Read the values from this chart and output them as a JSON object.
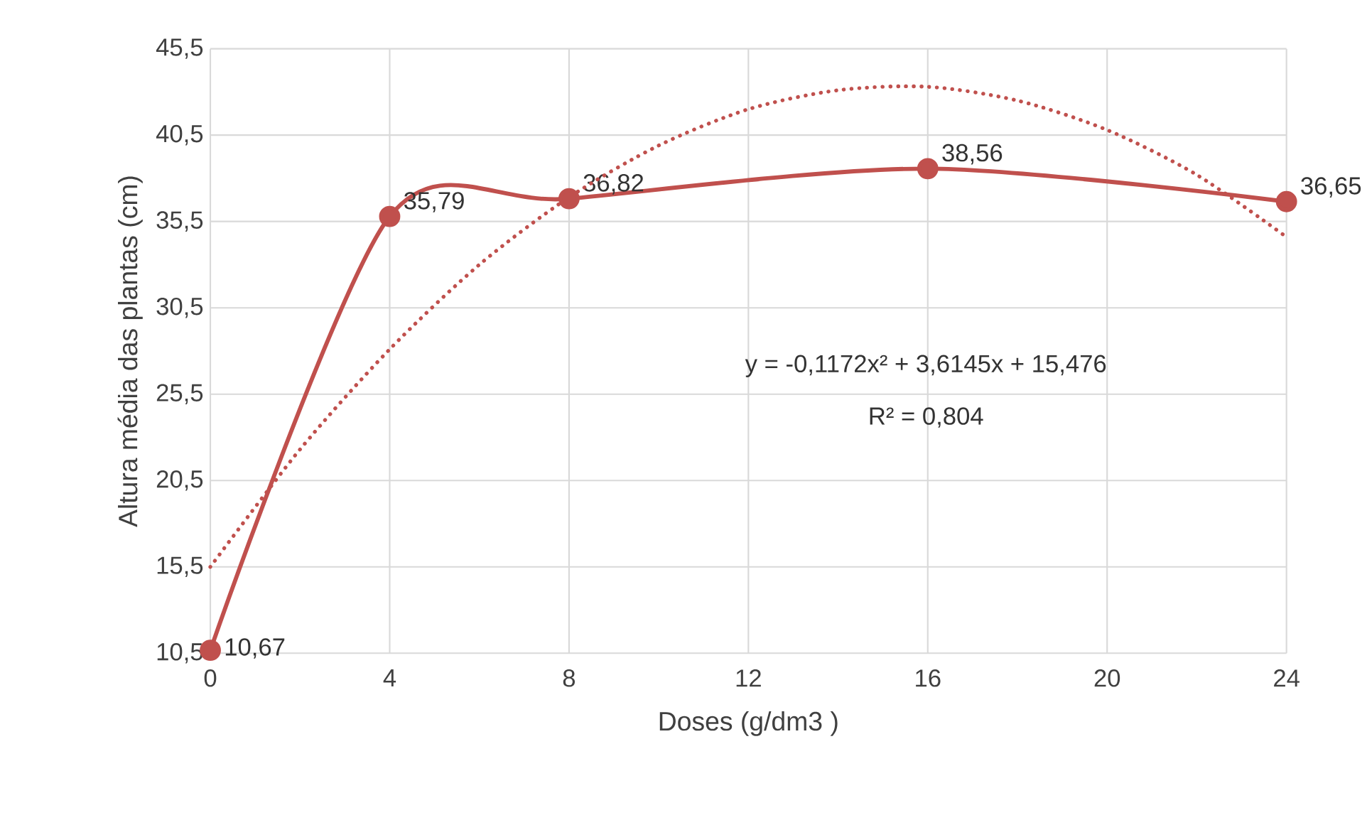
{
  "chart_data": {
    "type": "line",
    "xlabel": "Doses (g/dm3 )",
    "ylabel": "Altura média das plantas (cm)",
    "xlim": [
      0,
      24
    ],
    "xticks": [
      0,
      4,
      8,
      12,
      16,
      20,
      24
    ],
    "ylim": [
      10.5,
      45.5
    ],
    "yticks": [
      {
        "value": 10.5,
        "label": "10,5"
      },
      {
        "value": 15.5,
        "label": "15,5"
      },
      {
        "value": 20.5,
        "label": "20,5"
      },
      {
        "value": 25.5,
        "label": "25,5"
      },
      {
        "value": 30.5,
        "label": "30,5"
      },
      {
        "value": 35.5,
        "label": "35,5"
      },
      {
        "value": 40.5,
        "label": "40,5"
      },
      {
        "value": 45.5,
        "label": "45,5"
      }
    ],
    "grid": true,
    "series": [
      {
        "color": "#c0504d",
        "marker": "circle",
        "line_style": "solid",
        "x": [
          0,
          4,
          8,
          16,
          24
        ],
        "values": [
          10.67,
          35.79,
          36.82,
          38.56,
          36.65
        ],
        "value_labels": [
          "10,67",
          "35,79",
          "36,82",
          "38,56",
          "36,65"
        ]
      },
      {
        "color": "#c0504d",
        "marker": "none",
        "line_style": "dotted",
        "x": [
          0,
          2,
          4,
          6,
          8,
          10,
          12,
          14,
          16,
          18,
          20,
          22,
          24
        ],
        "values": [
          15.5,
          22.3,
          28.1,
          33.0,
          36.9,
          39.9,
          42.0,
          43.1,
          43.3,
          42.5,
          40.8,
          38.2,
          34.6
        ]
      }
    ],
    "annotations": [
      "y = -0,1172x² + 3,6145x + 15,476",
      "R² = 0,804"
    ]
  }
}
